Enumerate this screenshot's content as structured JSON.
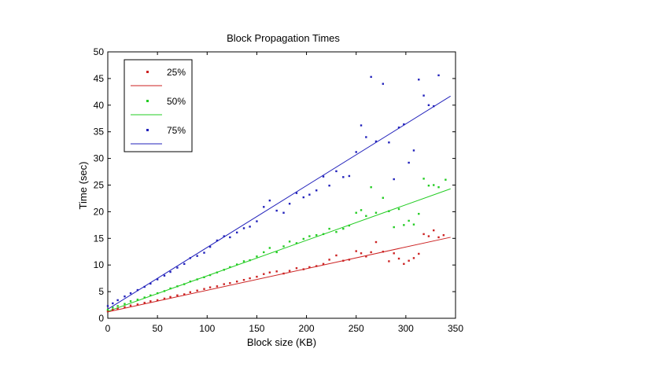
{
  "chart_data": {
    "type": "scatter",
    "title": "Block Propagation Times",
    "xlabel": "Block size (KB)",
    "ylabel": "Time (sec)",
    "xlim": [
      0,
      350
    ],
    "ylim": [
      0,
      50
    ],
    "xticks": [
      "0",
      "50",
      "100",
      "150",
      "200",
      "250",
      "300",
      "350"
    ],
    "yticks": [
      "0",
      "5",
      "10",
      "15",
      "20",
      "25",
      "30",
      "35",
      "40",
      "45",
      "50"
    ],
    "grid": false,
    "legend_position": "top-left",
    "series": [
      {
        "name": "25%",
        "color": "#cc2222",
        "fit": [
          [
            0,
            1.2
          ],
          [
            345,
            15.2
          ]
        ],
        "points": [
          [
            0,
            1.3
          ],
          [
            5,
            1.6
          ],
          [
            10,
            1.8
          ],
          [
            17,
            2.1
          ],
          [
            23,
            2.4
          ],
          [
            30,
            2.6
          ],
          [
            37,
            2.9
          ],
          [
            43,
            3.2
          ],
          [
            50,
            3.4
          ],
          [
            57,
            3.7
          ],
          [
            63,
            4.0
          ],
          [
            70,
            4.3
          ],
          [
            77,
            4.5
          ],
          [
            83,
            4.9
          ],
          [
            90,
            5.2
          ],
          [
            97,
            5.5
          ],
          [
            103,
            5.8
          ],
          [
            110,
            6.0
          ],
          [
            117,
            6.4
          ],
          [
            123,
            6.6
          ],
          [
            130,
            6.9
          ],
          [
            137,
            7.2
          ],
          [
            143,
            7.5
          ],
          [
            150,
            7.8
          ],
          [
            157,
            8.3
          ],
          [
            163,
            8.6
          ],
          [
            170,
            8.8
          ],
          [
            177,
            8.4
          ],
          [
            183,
            8.9
          ],
          [
            190,
            9.4
          ],
          [
            197,
            9.2
          ],
          [
            203,
            9.6
          ],
          [
            210,
            9.8
          ],
          [
            217,
            10.2
          ],
          [
            223,
            11.0
          ],
          [
            230,
            11.8
          ],
          [
            237,
            10.8
          ],
          [
            243,
            11.0
          ],
          [
            250,
            12.6
          ],
          [
            255,
            12.2
          ],
          [
            260,
            11.6
          ],
          [
            265,
            12.4
          ],
          [
            270,
            14.3
          ],
          [
            277,
            12.5
          ],
          [
            283,
            10.7
          ],
          [
            288,
            12.2
          ],
          [
            293,
            11.2
          ],
          [
            298,
            10.2
          ],
          [
            303,
            10.8
          ],
          [
            308,
            11.3
          ],
          [
            313,
            12.1
          ],
          [
            318,
            15.8
          ],
          [
            323,
            15.4
          ],
          [
            328,
            16.5
          ],
          [
            333,
            15.2
          ],
          [
            338,
            15.6
          ]
        ]
      },
      {
        "name": "50%",
        "color": "#22cc22",
        "fit": [
          [
            0,
            1.3
          ],
          [
            345,
            24.3
          ]
        ],
        "points": [
          [
            0,
            1.6
          ],
          [
            5,
            2.0
          ],
          [
            10,
            2.3
          ],
          [
            17,
            2.7
          ],
          [
            23,
            3.2
          ],
          [
            30,
            3.5
          ],
          [
            37,
            3.9
          ],
          [
            43,
            4.3
          ],
          [
            50,
            4.7
          ],
          [
            57,
            5.1
          ],
          [
            63,
            5.6
          ],
          [
            70,
            6.0
          ],
          [
            77,
            6.4
          ],
          [
            83,
            6.9
          ],
          [
            90,
            7.3
          ],
          [
            97,
            7.7
          ],
          [
            103,
            8.1
          ],
          [
            110,
            8.6
          ],
          [
            117,
            9.1
          ],
          [
            123,
            9.6
          ],
          [
            130,
            10.1
          ],
          [
            137,
            10.7
          ],
          [
            143,
            10.9
          ],
          [
            150,
            11.6
          ],
          [
            157,
            12.4
          ],
          [
            163,
            13.2
          ],
          [
            170,
            12.4
          ],
          [
            177,
            13.5
          ],
          [
            183,
            14.4
          ],
          [
            190,
            14.1
          ],
          [
            197,
            14.9
          ],
          [
            203,
            15.4
          ],
          [
            210,
            15.6
          ],
          [
            217,
            15.8
          ],
          [
            223,
            16.8
          ],
          [
            230,
            16.2
          ],
          [
            237,
            16.8
          ],
          [
            243,
            17.4
          ],
          [
            250,
            19.8
          ],
          [
            255,
            20.3
          ],
          [
            260,
            19.2
          ],
          [
            265,
            24.6
          ],
          [
            270,
            19.8
          ],
          [
            277,
            22.6
          ],
          [
            283,
            20.1
          ],
          [
            288,
            17.1
          ],
          [
            293,
            20.5
          ],
          [
            298,
            17.5
          ],
          [
            303,
            18.3
          ],
          [
            308,
            17.6
          ],
          [
            313,
            19.6
          ],
          [
            318,
            26.2
          ],
          [
            323,
            24.9
          ],
          [
            328,
            25.0
          ],
          [
            333,
            24.6
          ],
          [
            340,
            26.0
          ]
        ]
      },
      {
        "name": "75%",
        "color": "#2222bb",
        "fit": [
          [
            0,
            1.7
          ],
          [
            345,
            41.7
          ]
        ],
        "points": [
          [
            0,
            2.3
          ],
          [
            5,
            2.8
          ],
          [
            10,
            3.4
          ],
          [
            17,
            4.1
          ],
          [
            23,
            4.7
          ],
          [
            30,
            5.3
          ],
          [
            37,
            5.9
          ],
          [
            43,
            6.5
          ],
          [
            50,
            7.3
          ],
          [
            57,
            8.0
          ],
          [
            63,
            8.7
          ],
          [
            70,
            9.5
          ],
          [
            77,
            10.2
          ],
          [
            83,
            11.3
          ],
          [
            90,
            11.7
          ],
          [
            97,
            12.3
          ],
          [
            103,
            13.4
          ],
          [
            110,
            14.6
          ],
          [
            117,
            15.4
          ],
          [
            123,
            15.2
          ],
          [
            130,
            16.1
          ],
          [
            137,
            16.9
          ],
          [
            143,
            17.2
          ],
          [
            150,
            18.2
          ],
          [
            157,
            20.9
          ],
          [
            163,
            22.1
          ],
          [
            170,
            20.2
          ],
          [
            177,
            19.8
          ],
          [
            183,
            21.5
          ],
          [
            190,
            23.5
          ],
          [
            197,
            22.7
          ],
          [
            203,
            23.2
          ],
          [
            210,
            24.0
          ],
          [
            217,
            26.6
          ],
          [
            223,
            24.9
          ],
          [
            230,
            27.6
          ],
          [
            237,
            26.5
          ],
          [
            243,
            26.7
          ],
          [
            250,
            31.2
          ],
          [
            255,
            36.2
          ],
          [
            260,
            34.0
          ],
          [
            265,
            45.3
          ],
          [
            270,
            33.2
          ],
          [
            277,
            44.0
          ],
          [
            283,
            33.0
          ],
          [
            288,
            26.1
          ],
          [
            293,
            35.8
          ],
          [
            298,
            36.4
          ],
          [
            303,
            29.2
          ],
          [
            308,
            31.5
          ],
          [
            313,
            44.8
          ],
          [
            318,
            41.8
          ],
          [
            323,
            40.0
          ],
          [
            328,
            39.8
          ],
          [
            333,
            45.6
          ]
        ]
      }
    ]
  }
}
